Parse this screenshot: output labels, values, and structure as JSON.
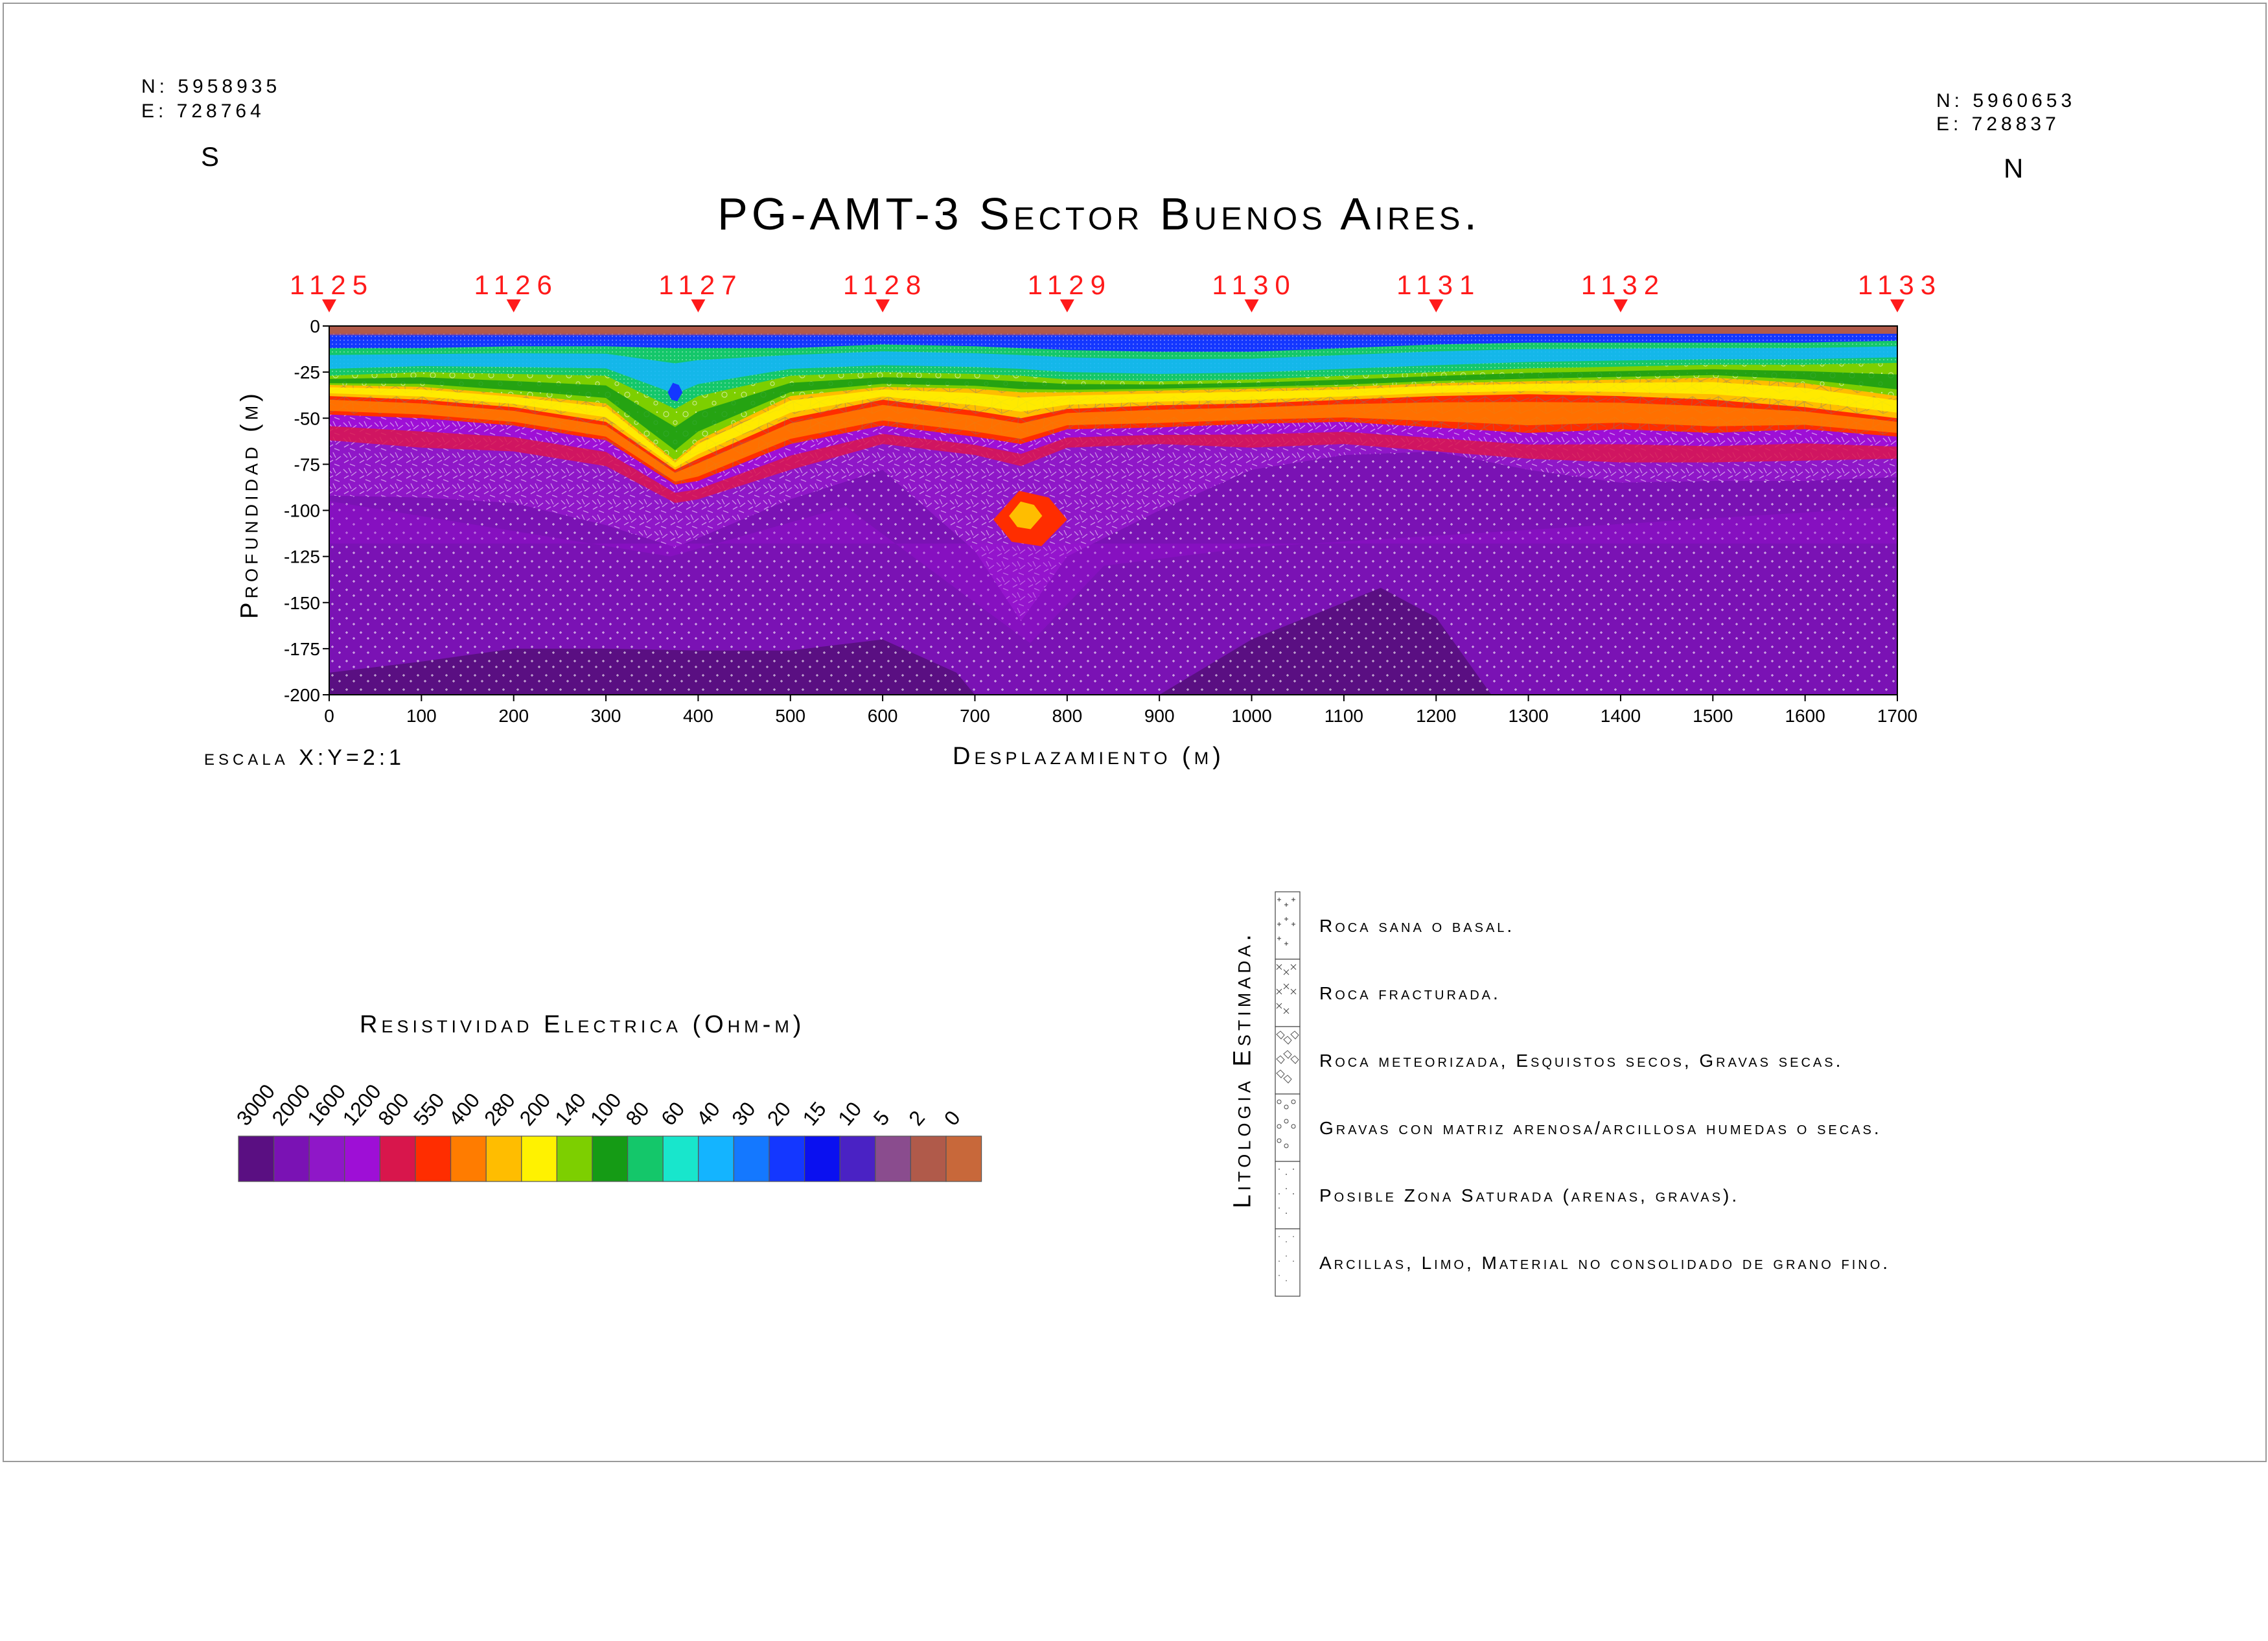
{
  "header": {
    "left_coords": {
      "n": "N: 5958935",
      "e": "E:   728764",
      "dir": "S"
    },
    "right_coords": {
      "n": "N: 5960653",
      "e": "E:   728837",
      "dir": "N"
    },
    "title": "PG-AMT-3 Sector Buenos Aires."
  },
  "scale_note": "escala  X:Y=2:1",
  "stations": [
    {
      "label": "1125",
      "x": 0
    },
    {
      "label": "1126",
      "x": 200
    },
    {
      "label": "1127",
      "x": 400
    },
    {
      "label": "1128",
      "x": 600
    },
    {
      "label": "1129",
      "x": 800
    },
    {
      "label": "1130",
      "x": 1000
    },
    {
      "label": "1131",
      "x": 1200
    },
    {
      "label": "1132",
      "x": 1400
    },
    {
      "label": "1133",
      "x": 1700
    }
  ],
  "chart_data": {
    "type": "heatmap",
    "title": "PG-AMT-3 Sector Buenos Aires.",
    "xlabel": "Desplazamiento (m)",
    "ylabel": "Profundidad (m)",
    "xlim": [
      0,
      1700
    ],
    "ylim": [
      -200,
      0
    ],
    "x_ticks": [
      0,
      100,
      200,
      300,
      400,
      500,
      600,
      700,
      800,
      900,
      1000,
      1100,
      1200,
      1300,
      1400,
      1500,
      1600,
      1700
    ],
    "y_ticks": [
      0,
      -25,
      -50,
      -75,
      -100,
      -125,
      -150,
      -175,
      -200
    ],
    "x_positions": [
      0,
      100,
      200,
      300,
      375,
      400,
      500,
      600,
      700,
      750,
      800,
      900,
      1000,
      1100,
      1200,
      1300,
      1400,
      1500,
      1600,
      1700
    ],
    "layer_boundaries": [
      {
        "resistivity_above": 5,
        "depths": [
          -5,
          -5,
          -5,
          -5,
          -5,
          -5,
          -5,
          -5,
          -5,
          -5,
          -5,
          -5,
          -5,
          -5,
          -5,
          -4,
          -4,
          -4,
          -4,
          -4
        ]
      },
      {
        "resistivity_above": 20,
        "depths": [
          -12,
          -12,
          -11,
          -11,
          -12,
          -12,
          -12,
          -10,
          -11,
          -12,
          -13,
          -14,
          -14,
          -12,
          -10,
          -9,
          -9,
          -9,
          -9,
          -8
        ]
      },
      {
        "resistivity_above": 80,
        "depths": [
          -27,
          -25,
          -26,
          -27,
          -45,
          -38,
          -27,
          -25,
          -26,
          -27,
          -29,
          -30,
          -29,
          -27,
          -25,
          -23,
          -22,
          -21,
          -21,
          -20
        ]
      },
      {
        "resistivity_above": 140,
        "depths": [
          -32,
          -33,
          -37,
          -42,
          -73,
          -62,
          -38,
          -33,
          -34,
          -36,
          -36,
          -35,
          -34,
          -33,
          -31,
          -30,
          -29,
          -28,
          -31,
          -38
        ]
      },
      {
        "resistivity_above": 280,
        "depths": [
          -38,
          -40,
          -44,
          -52,
          -78,
          -72,
          -50,
          -40,
          -46,
          -50,
          -45,
          -43,
          -42,
          -40,
          -38,
          -37,
          -38,
          -40,
          -44,
          -50
        ]
      },
      {
        "resistivity_above": 550,
        "depths": [
          -48,
          -50,
          -54,
          -62,
          -86,
          -84,
          -64,
          -54,
          -60,
          -64,
          -56,
          -55,
          -53,
          -52,
          -55,
          -58,
          -56,
          -58,
          -56,
          -60
        ]
      },
      {
        "resistivity_above": 1200,
        "depths": [
          -62,
          -66,
          -68,
          -76,
          -96,
          -94,
          -78,
          -64,
          -70,
          -76,
          -66,
          -64,
          -66,
          -64,
          -68,
          -72,
          -74,
          -74,
          -73,
          -72
        ]
      },
      {
        "resistivity_above": 1600,
        "depths": [
          -92,
          -93,
          -96,
          -108,
          -120,
          -115,
          -94,
          -78,
          -122,
          -160,
          -125,
          -100,
          -78,
          -70,
          -68,
          -78,
          -85,
          -84,
          -84,
          -82
        ]
      }
    ],
    "deep_zones": [
      {
        "resistivity": 3000,
        "x": [
          0,
          100,
          200,
          300,
          400,
          500,
          600,
          680,
          700
        ],
        "top_depth": [
          -188,
          -182,
          -175,
          -175,
          -176,
          -176,
          -170,
          -188,
          -200
        ]
      },
      {
        "resistivity": 3000,
        "x": [
          900,
          1000,
          1100,
          1140,
          1200,
          1260
        ],
        "top_depth": [
          -200,
          -170,
          -150,
          -142,
          -158,
          -200
        ]
      }
    ],
    "anomalies": [
      {
        "resistivity": 550,
        "center_x": 760,
        "center_depth": -105,
        "half_width": 40,
        "half_height": 12
      },
      {
        "resistivity": 280,
        "center_x": 755,
        "center_depth": -103,
        "half_width": 18,
        "half_height": 6
      },
      {
        "resistivity": 20,
        "center_x": 375,
        "center_depth": -36,
        "half_width": 8,
        "half_height": 4
      }
    ],
    "grid": false
  },
  "legend": {
    "title": "Resistividad Electrica (Ohm-m)",
    "bins": [
      {
        "label": "3000",
        "color": "#5a0f82"
      },
      {
        "label": "2000",
        "color": "#7a12b4"
      },
      {
        "label": "1600",
        "color": "#8f17c8"
      },
      {
        "label": "1200",
        "color": "#9e0fd6"
      },
      {
        "label": "800",
        "color": "#d8164c"
      },
      {
        "label": "550",
        "color": "#ff2d00"
      },
      {
        "label": "400",
        "color": "#ff7c00"
      },
      {
        "label": "280",
        "color": "#ffbd00"
      },
      {
        "label": "200",
        "color": "#fff200"
      },
      {
        "label": "140",
        "color": "#7dcf00"
      },
      {
        "label": "100",
        "color": "#159b15"
      },
      {
        "label": "80",
        "color": "#14c76a"
      },
      {
        "label": "60",
        "color": "#18e6cc"
      },
      {
        "label": "40",
        "color": "#14b4ff"
      },
      {
        "label": "30",
        "color": "#1478ff"
      },
      {
        "label": "20",
        "color": "#1437ff"
      },
      {
        "label": "15",
        "color": "#0a10f0"
      },
      {
        "label": "10",
        "color": "#4a22c4"
      },
      {
        "label": "5",
        "color": "#8a4c8e"
      },
      {
        "label": "2",
        "color": "#b05a4a"
      },
      {
        "label": "0",
        "color": "#c8683a"
      }
    ]
  },
  "lithology": {
    "title": "Litologia Estimada.",
    "items": [
      {
        "label": "Roca sana o basal.",
        "pattern": "dots-plus"
      },
      {
        "label": "Roca fracturada.",
        "pattern": "hatch-cross"
      },
      {
        "label": "Roca meteorizada, Esquistos secos, Gravas secas.",
        "pattern": "cells"
      },
      {
        "label": "Gravas con matriz arenosa/arcillosa humedas o secas.",
        "pattern": "gravel"
      },
      {
        "label": "Posible Zona Saturada (arenas, gravas).",
        "pattern": "dense-dots"
      },
      {
        "label": "Arcillas, Limo, Material no consolidado de grano fino.",
        "pattern": "fine-dots"
      }
    ]
  }
}
